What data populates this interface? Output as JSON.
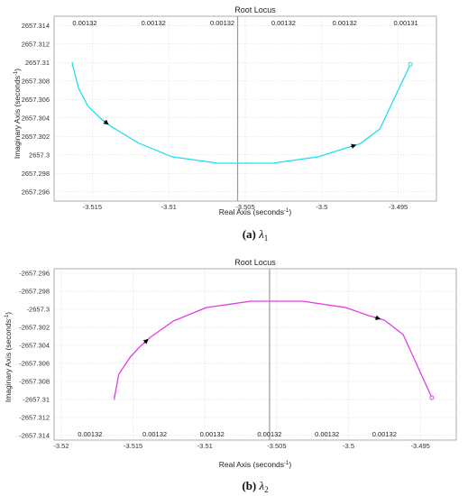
{
  "chart_data": [
    {
      "type": "line",
      "title": "Root Locus",
      "xlabel": "Real Axis (seconds",
      "xlabel_sup": "-1",
      "ylabel": "Imaginary Axis (seconds",
      "ylabel_sup": "-1",
      "xlim": [
        -3.5175,
        -3.4925
      ],
      "ylim": [
        2657.295,
        2657.315
      ],
      "xticks": [
        -3.515,
        -3.51,
        -3.505,
        -3.5,
        -3.495
      ],
      "xtick_labels": [
        "-3.515",
        "-3.51",
        "-3.505",
        "-3.5",
        "-3.495"
      ],
      "yticks": [
        2657.296,
        2657.298,
        2657.3,
        2657.302,
        2657.304,
        2657.306,
        2657.308,
        2657.31,
        2657.312,
        2657.314
      ],
      "ytick_labels": [
        "2657.296",
        "2657.298",
        "2657.3",
        "2657.302",
        "2657.304",
        "2657.306",
        "2657.308",
        "2657.31",
        "2657.312",
        "2657.314"
      ],
      "grid": true,
      "overlay_labels": [
        {
          "x": -3.5155,
          "text": "0.00132"
        },
        {
          "x": -3.511,
          "text": "0.00132"
        },
        {
          "x": -3.5065,
          "text": "0.00132"
        },
        {
          "x": -3.5025,
          "text": "0.00132"
        },
        {
          "x": -3.4985,
          "text": "0.00132"
        },
        {
          "x": -3.4945,
          "text": "0.00131"
        }
      ],
      "series": [
        {
          "color": "#22e0ee",
          "x": [
            -3.5163,
            -3.5159,
            -3.5153,
            -3.5145,
            -3.5138,
            -3.512,
            -3.5098,
            -3.5068,
            -3.5052,
            -3.5032,
            -3.5002,
            -3.4985,
            -3.4975,
            -3.4962,
            -3.4942
          ],
          "y": [
            2657.3098,
            2657.3072,
            2657.3053,
            2657.304,
            2657.3031,
            2657.3013,
            2657.2998,
            2657.2991,
            2657.2991,
            2657.2991,
            2657.2998,
            2657.3007,
            2657.3012,
            2657.3028,
            2657.3098
          ],
          "arrows": [
            3,
            11
          ],
          "marker_ends": true
        }
      ],
      "caption_label": "(a)",
      "caption_symbol": "λ",
      "caption_sub": "1"
    },
    {
      "type": "line",
      "title": "Root Locus",
      "xlabel": "Real Axis (seconds",
      "xlabel_sup": "-1",
      "ylabel": "Imaginary Axis (seconds",
      "ylabel_sup": "-1",
      "xlim": [
        -3.5205,
        -3.4925
      ],
      "ylim": [
        -2657.3145,
        -2657.2955
      ],
      "xticks": [
        -3.52,
        -3.515,
        -3.51,
        -3.505,
        -3.5,
        -3.495
      ],
      "xtick_labels": [
        "-3.52",
        "-3.515",
        "-3.51",
        "-3.505",
        "-3.5",
        "-3.495"
      ],
      "yticks": [
        -2657.314,
        -2657.312,
        -2657.31,
        -2657.308,
        -2657.306,
        -2657.304,
        -2657.302,
        -2657.3,
        -2657.298,
        -2657.296
      ],
      "ytick_labels": [
        "-2657.314",
        "-2657.312",
        "-2657.31",
        "-2657.308",
        "-2657.306",
        "-2657.304",
        "-2657.302",
        "-2657.3",
        "-2657.298",
        "-2657.296"
      ],
      "grid": true,
      "overlay_labels": [
        {
          "x": -3.518,
          "text": "0.00132"
        },
        {
          "x": -3.5135,
          "text": "0.00132"
        },
        {
          "x": -3.5095,
          "text": "0.00132"
        },
        {
          "x": -3.5055,
          "text": "0.00132"
        },
        {
          "x": -3.5015,
          "text": "0.00132"
        },
        {
          "x": -3.4975,
          "text": "0.00132"
        }
      ],
      "series": [
        {
          "color": "#e23ee6",
          "x": [
            -3.5163,
            -3.516,
            -3.5152,
            -3.5145,
            -3.5138,
            -3.5122,
            -3.5099,
            -3.5068,
            -3.5052,
            -3.5032,
            -3.5002,
            -3.4986,
            -3.4975,
            -3.4962,
            -3.4942
          ],
          "y": [
            -2657.3098,
            -2657.3072,
            -2657.3053,
            -2657.3041,
            -2657.3031,
            -2657.3013,
            -2657.2998,
            -2657.2991,
            -2657.2991,
            -2657.2991,
            -2657.2998,
            -2657.3007,
            -2657.3012,
            -2657.3028,
            -2657.3098
          ],
          "arrows": [
            3,
            11
          ],
          "marker_ends": true
        }
      ],
      "caption_label": "(b)",
      "caption_symbol": "λ",
      "caption_sub": "2"
    }
  ]
}
